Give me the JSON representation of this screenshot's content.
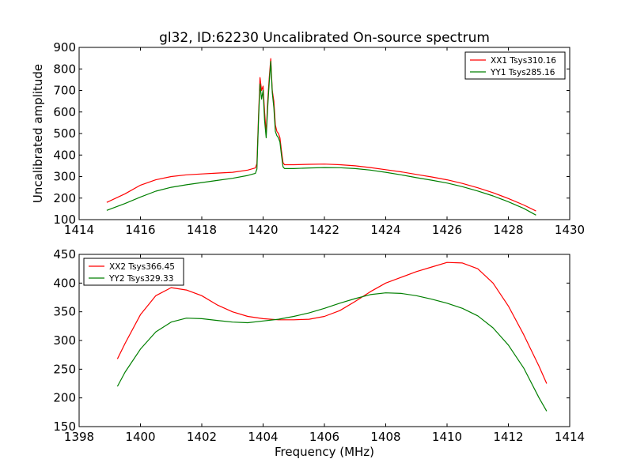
{
  "chart_data": [
    {
      "type": "line",
      "title": "gl32, ID:62230 Uncalibrated On-source spectrum",
      "xlabel": "",
      "ylabel": "Uncalibrated amplitude",
      "xlim": [
        1414,
        1430
      ],
      "ylim": [
        100,
        900
      ],
      "xticks": [
        1414,
        1416,
        1418,
        1420,
        1422,
        1424,
        1426,
        1428,
        1430
      ],
      "yticks": [
        100,
        200,
        300,
        400,
        500,
        600,
        700,
        800,
        900
      ],
      "legend": "top-right",
      "grid": false,
      "series": [
        {
          "name": "XX1 Tsys310.16",
          "color": "#ff0000",
          "x": [
            1414.9,
            1415.5,
            1416.0,
            1416.5,
            1417.0,
            1417.5,
            1418.0,
            1418.5,
            1419.0,
            1419.5,
            1419.75,
            1419.8,
            1419.85,
            1419.9,
            1419.95,
            1420.0,
            1420.05,
            1420.1,
            1420.15,
            1420.2,
            1420.25,
            1420.3,
            1420.35,
            1420.4,
            1420.45,
            1420.5,
            1420.55,
            1420.6,
            1420.65,
            1420.7,
            1421.0,
            1421.5,
            1422.0,
            1422.5,
            1423.0,
            1423.5,
            1424.0,
            1424.5,
            1425.0,
            1425.5,
            1426.0,
            1426.5,
            1427.0,
            1427.5,
            1428.0,
            1428.5,
            1428.9
          ],
          "y": [
            180,
            220,
            260,
            285,
            300,
            308,
            312,
            316,
            320,
            330,
            340,
            360,
            580,
            760,
            700,
            720,
            600,
            500,
            650,
            760,
            848,
            700,
            650,
            540,
            510,
            500,
            480,
            420,
            365,
            355,
            355,
            357,
            358,
            355,
            350,
            342,
            332,
            322,
            310,
            298,
            285,
            268,
            248,
            225,
            198,
            168,
            140
          ]
        },
        {
          "name": "YY1 Tsys285.16",
          "color": "#007f00",
          "x": [
            1414.9,
            1415.5,
            1416.0,
            1416.5,
            1417.0,
            1417.5,
            1418.0,
            1418.5,
            1419.0,
            1419.5,
            1419.75,
            1419.8,
            1419.85,
            1419.9,
            1419.95,
            1420.0,
            1420.05,
            1420.1,
            1420.15,
            1420.2,
            1420.25,
            1420.3,
            1420.35,
            1420.4,
            1420.45,
            1420.5,
            1420.55,
            1420.6,
            1420.65,
            1420.7,
            1421.0,
            1421.5,
            1422.0,
            1422.5,
            1423.0,
            1423.5,
            1424.0,
            1424.5,
            1425.0,
            1425.5,
            1426.0,
            1426.5,
            1427.0,
            1427.5,
            1428.0,
            1428.5,
            1428.9
          ],
          "y": [
            143,
            175,
            205,
            232,
            250,
            262,
            272,
            282,
            292,
            305,
            315,
            335,
            560,
            730,
            660,
            700,
            560,
            480,
            620,
            740,
            835,
            690,
            620,
            510,
            490,
            480,
            460,
            400,
            345,
            337,
            337,
            340,
            342,
            341,
            337,
            330,
            320,
            308,
            295,
            283,
            270,
            253,
            233,
            210,
            183,
            152,
            121
          ]
        }
      ]
    },
    {
      "type": "line",
      "title": "",
      "xlabel": "Frequency (MHz)",
      "ylabel": "",
      "xlim": [
        1398,
        1414
      ],
      "ylim": [
        150,
        450
      ],
      "xticks": [
        1398,
        1400,
        1402,
        1404,
        1406,
        1408,
        1410,
        1412,
        1414
      ],
      "yticks": [
        150,
        200,
        250,
        300,
        350,
        400,
        450
      ],
      "legend": "top-left",
      "grid": false,
      "series": [
        {
          "name": "XX2 Tsys366.45",
          "color": "#ff0000",
          "x": [
            1399.25,
            1399.5,
            1400.0,
            1400.5,
            1401.0,
            1401.5,
            1402.0,
            1402.5,
            1403.0,
            1403.5,
            1404.0,
            1404.5,
            1405.0,
            1405.5,
            1406.0,
            1406.5,
            1407.0,
            1407.5,
            1408.0,
            1408.5,
            1409.0,
            1409.5,
            1410.0,
            1410.5,
            1411.0,
            1411.5,
            1412.0,
            1412.5,
            1413.0,
            1413.25
          ],
          "y": [
            268,
            295,
            345,
            378,
            392,
            388,
            378,
            362,
            350,
            342,
            338,
            336,
            336,
            337,
            342,
            352,
            368,
            385,
            400,
            410,
            420,
            428,
            436,
            435,
            425,
            400,
            360,
            310,
            255,
            225
          ]
        },
        {
          "name": "YY2 Tsys329.33",
          "color": "#007f00",
          "x": [
            1399.25,
            1399.5,
            1400.0,
            1400.5,
            1401.0,
            1401.5,
            1402.0,
            1402.5,
            1403.0,
            1403.5,
            1404.0,
            1404.5,
            1405.0,
            1405.5,
            1406.0,
            1406.5,
            1407.0,
            1407.5,
            1408.0,
            1408.5,
            1409.0,
            1409.5,
            1410.0,
            1410.5,
            1411.0,
            1411.5,
            1412.0,
            1412.5,
            1413.0,
            1413.25
          ],
          "y": [
            220,
            245,
            285,
            315,
            332,
            339,
            338,
            335,
            332,
            331,
            334,
            337,
            342,
            348,
            356,
            365,
            373,
            380,
            383,
            382,
            378,
            372,
            365,
            356,
            343,
            322,
            292,
            252,
            200,
            177
          ]
        }
      ]
    }
  ]
}
